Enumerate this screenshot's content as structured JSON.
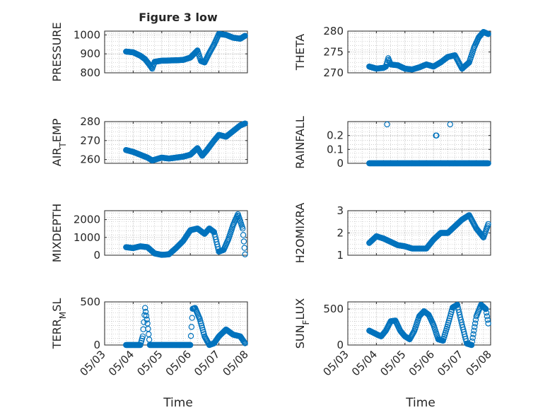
{
  "figure": {
    "title": "Figure 3 low",
    "xlabel": "Time",
    "marker_color": "#0072BD",
    "grid_color": "#b0b0b0"
  },
  "chart_data": [
    {
      "type": "scatter",
      "ylabel": "PRESSURE",
      "xlim": [
        "05/03",
        "05/08"
      ],
      "ylim": [
        800,
        1020
      ],
      "yticks": [
        800,
        900,
        1000
      ],
      "x": [
        "05/03 18:00",
        "05/04 00:00",
        "05/04 06:00",
        "05/04 10:00",
        "05/04 14:00",
        "05/04 16:00",
        "05/04 18:00",
        "05/05 00:00",
        "05/05 06:00",
        "05/05 12:00",
        "05/05 18:00",
        "05/06 00:00",
        "05/06 06:00",
        "05/06 09:00",
        "05/06 12:00",
        "05/06 16:00",
        "05/06 20:00",
        "05/07 00:00",
        "05/07 06:00",
        "05/07 12:00",
        "05/07 18:00",
        "05/07 22:00"
      ],
      "y": [
        912,
        908,
        890,
        872,
        840,
        822,
        858,
        864,
        865,
        866,
        868,
        880,
        918,
        862,
        855,
        905,
        950,
        1005,
        1000,
        985,
        980,
        995
      ]
    },
    {
      "type": "scatter",
      "ylabel": "THETA",
      "xlim": [
        "05/03",
        "05/08"
      ],
      "ylim": [
        270,
        280
      ],
      "yticks": [
        270,
        275,
        280
      ],
      "x": [
        "05/03 18:00",
        "05/04 00:00",
        "05/04 06:00",
        "05/04 08:00",
        "05/04 10:00",
        "05/04 12:00",
        "05/04 18:00",
        "05/05 00:00",
        "05/05 06:00",
        "05/05 12:00",
        "05/05 18:00",
        "05/06 00:00",
        "05/06 06:00",
        "05/06 12:00",
        "05/06 18:00",
        "05/07 00:00",
        "05/07 06:00",
        "05/07 10:00",
        "05/07 14:00",
        "05/07 18:00",
        "05/07 22:00"
      ],
      "y": [
        271.5,
        271,
        271.2,
        271.5,
        273.5,
        272,
        271.8,
        271,
        270.8,
        271.3,
        272,
        271.5,
        272.5,
        273.8,
        274.2,
        271,
        272.5,
        276,
        278.5,
        279.8,
        279.3
      ]
    },
    {
      "type": "scatter",
      "ylabel": "AIR_TEMP",
      "xlim": [
        "05/03",
        "05/08"
      ],
      "ylim": [
        258,
        280
      ],
      "yticks": [
        260,
        270,
        280
      ],
      "x": [
        "05/03 18:00",
        "05/04 00:00",
        "05/04 06:00",
        "05/04 12:00",
        "05/04 16:00",
        "05/05 00:00",
        "05/05 06:00",
        "05/05 12:00",
        "05/05 18:00",
        "05/06 00:00",
        "05/06 06:00",
        "05/06 10:00",
        "05/06 14:00",
        "05/06 20:00",
        "05/07 00:00",
        "05/07 06:00",
        "05/07 12:00",
        "05/07 18:00",
        "05/07 22:00"
      ],
      "y": [
        265,
        264,
        262.5,
        261,
        259.5,
        261,
        260.5,
        261,
        261.5,
        262.5,
        266,
        262,
        265,
        270,
        273,
        272,
        275,
        278,
        279
      ]
    },
    {
      "type": "scatter",
      "ylabel": "RAINFALL",
      "xlim": [
        "05/03",
        "05/08"
      ],
      "ylim": [
        0,
        0.3
      ],
      "yticks": [
        0,
        0.1,
        0.2
      ],
      "x": [
        "05/03 18:00",
        "05/04 00:00",
        "05/04 06:00",
        "05/04 12:00",
        "05/04 18:00",
        "05/05 00:00",
        "05/05 06:00",
        "05/05 12:00",
        "05/05 18:00",
        "05/06 00:00",
        "05/06 06:00",
        "05/06 12:00",
        "05/06 18:00",
        "05/07 00:00",
        "05/07 06:00",
        "05/07 12:00",
        "05/07 18:00",
        "05/07 22:00",
        "05/04 09:00",
        "05/06 02:00",
        "05/06 02:30",
        "05/06 14:00"
      ],
      "y": [
        0,
        0,
        0,
        0,
        0,
        0,
        0,
        0,
        0,
        0,
        0,
        0,
        0,
        0,
        0,
        0,
        0,
        0,
        0.28,
        0.2,
        0.2,
        0.28
      ]
    },
    {
      "type": "scatter",
      "ylabel": "MIXDEPTH",
      "xlim": [
        "05/03",
        "05/08"
      ],
      "ylim": [
        0,
        2500
      ],
      "yticks": [
        0,
        1000,
        2000
      ],
      "x": [
        "05/03 18:00",
        "05/04 00:00",
        "05/04 06:00",
        "05/04 12:00",
        "05/04 18:00",
        "05/05 00:00",
        "05/05 06:00",
        "05/05 12:00",
        "05/05 18:00",
        "05/06 00:00",
        "05/06 06:00",
        "05/06 12:00",
        "05/06 16:00",
        "05/06 20:00",
        "05/07 00:00",
        "05/07 04:00",
        "05/07 08:00",
        "05/07 12:00",
        "05/07 16:00",
        "05/07 20:00",
        "05/07 22:00"
      ],
      "y": [
        450,
        400,
        500,
        450,
        100,
        20,
        50,
        400,
        800,
        1400,
        1500,
        1200,
        1500,
        1300,
        200,
        300,
        900,
        1700,
        2300,
        1500,
        50
      ]
    },
    {
      "type": "scatter",
      "ylabel": "H2OMIXRA",
      "xlim": [
        "05/03",
        "05/08"
      ],
      "ylim": [
        1,
        3
      ],
      "yticks": [
        1,
        2,
        3
      ],
      "x": [
        "05/03 18:00",
        "05/04 00:00",
        "05/04 06:00",
        "05/04 12:00",
        "05/04 18:00",
        "05/05 00:00",
        "05/05 06:00",
        "05/05 12:00",
        "05/05 18:00",
        "05/06 00:00",
        "05/06 06:00",
        "05/06 12:00",
        "05/06 18:00",
        "05/07 00:00",
        "05/07 06:00",
        "05/07 12:00",
        "05/07 18:00",
        "05/07 22:00"
      ],
      "y": [
        1.55,
        1.85,
        1.75,
        1.6,
        1.45,
        1.4,
        1.3,
        1.3,
        1.3,
        1.7,
        2.0,
        2.0,
        2.3,
        2.6,
        2.8,
        2.2,
        1.8,
        2.4
      ]
    },
    {
      "type": "scatter",
      "ylabel": "TERR_MSL",
      "xlim": [
        "05/03",
        "05/08"
      ],
      "ylim": [
        0,
        500
      ],
      "yticks": [
        0,
        500
      ],
      "x": [
        "05/03 18:00",
        "05/04 00:00",
        "05/04 06:00",
        "05/04 08:00",
        "05/04 10:00",
        "05/04 12:00",
        "05/04 14:00",
        "05/04 18:00",
        "05/05 00:00",
        "05/05 06:00",
        "05/05 12:00",
        "05/05 18:00",
        "05/06 00:00",
        "05/06 02:00",
        "05/06 04:00",
        "05/06 08:00",
        "05/06 12:00",
        "05/06 16:00",
        "05/06 20:00",
        "05/07 00:00",
        "05/07 06:00",
        "05/07 12:00",
        "05/07 18:00",
        "05/07 22:00"
      ],
      "y": [
        0,
        0,
        0,
        100,
        430,
        250,
        0,
        0,
        0,
        0,
        0,
        0,
        0,
        420,
        430,
        300,
        100,
        0,
        20,
        100,
        180,
        120,
        100,
        20
      ]
    },
    {
      "type": "scatter",
      "ylabel": "SUN_FLUX",
      "xlim": [
        "05/03",
        "05/08"
      ],
      "ylim": [
        0,
        600
      ],
      "yticks": [
        0,
        500
      ],
      "x": [
        "05/03 18:00",
        "05/04 00:00",
        "05/04 04:00",
        "05/04 08:00",
        "05/04 12:00",
        "05/04 16:00",
        "05/04 20:00",
        "05/05 00:00",
        "05/05 04:00",
        "05/05 08:00",
        "05/05 12:00",
        "05/05 16:00",
        "05/05 20:00",
        "05/06 00:00",
        "05/06 04:00",
        "05/06 08:00",
        "05/06 12:00",
        "05/06 16:00",
        "05/06 20:00",
        "05/07 00:00",
        "05/07 04:00",
        "05/07 08:00",
        "05/07 12:00",
        "05/07 16:00",
        "05/07 20:00",
        "05/07 22:00"
      ],
      "y": [
        200,
        150,
        120,
        200,
        330,
        340,
        200,
        120,
        80,
        200,
        400,
        470,
        420,
        280,
        80,
        60,
        280,
        520,
        560,
        280,
        20,
        0,
        400,
        560,
        500,
        300
      ]
    }
  ]
}
